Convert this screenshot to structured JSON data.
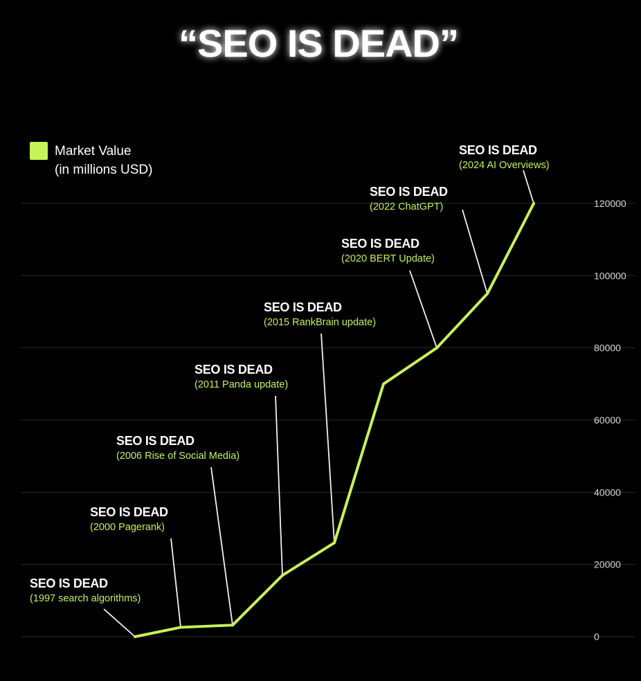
{
  "chart_data": {
    "type": "line",
    "title": "“SEO IS DEAD”",
    "legend": {
      "position": "top-left",
      "label_line1": "Market Value",
      "label_line2": "(in millions USD)"
    },
    "ylim": [
      0,
      120000
    ],
    "yticks": [
      "120000",
      "100000",
      "80000",
      "60000",
      "40000",
      "20000",
      "0"
    ],
    "ytick_values": [
      120000,
      100000,
      80000,
      60000,
      40000,
      20000,
      0
    ],
    "grid": true,
    "x": [
      1997,
      2000,
      2006,
      2011,
      2015,
      2020,
      2022,
      2024
    ],
    "series": [
      {
        "values": [
          0,
          2600,
          3200,
          17000,
          26000,
          70000,
          80000,
          95000,
          120000
        ],
        "x": [
          1997,
          2000,
          2006,
          2011,
          2015,
          2018,
          2020,
          2022,
          2024
        ]
      }
    ],
    "annotations": [
      {
        "year": 1997,
        "value": 0,
        "head": "SEO IS DEAD",
        "sub": "(1997 search algorithms)"
      },
      {
        "year": 2000,
        "value": 2600,
        "head": "SEO IS DEAD",
        "sub": "(2000 Pagerank)"
      },
      {
        "year": 2006,
        "value": 3200,
        "head": "SEO IS DEAD",
        "sub": "(2006 Rise of Social Media)"
      },
      {
        "year": 2011,
        "value": 17000,
        "head": "SEO IS DEAD",
        "sub": "(2011 Panda update)"
      },
      {
        "year": 2015,
        "value": 26000,
        "head": "SEO IS DEAD",
        "sub": "(2015 RankBrain update)"
      },
      {
        "year": 2020,
        "value": 80000,
        "head": "SEO IS DEAD",
        "sub": "(2020 BERT Update)"
      },
      {
        "year": 2022,
        "value": 95000,
        "head": "SEO IS DEAD",
        "sub": "(2022 ChatGPT)"
      },
      {
        "year": 2024,
        "value": 120000,
        "head": "SEO IS DEAD",
        "sub": "(2024 AI Overviews)"
      }
    ]
  },
  "colors": {
    "background": "#000000",
    "line": "#c6f25a",
    "accent_text": "#c6f25a",
    "text": "#ffffff",
    "grid": "#2a2a2a",
    "tick_text": "#d8d8d8",
    "leader": "#f2f2f2"
  }
}
